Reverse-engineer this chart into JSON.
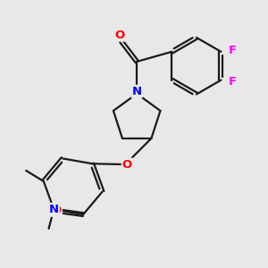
{
  "background_color": "#e8e8e8",
  "bond_color": "#1a1a1a",
  "atom_colors": {
    "O": "#ff0000",
    "N": "#0000ff",
    "F": "#ff00ff",
    "C": "#1a1a1a"
  },
  "figsize": [
    3.0,
    3.0
  ],
  "dpi": 100,
  "lw": 1.6,
  "fs": 9.5
}
